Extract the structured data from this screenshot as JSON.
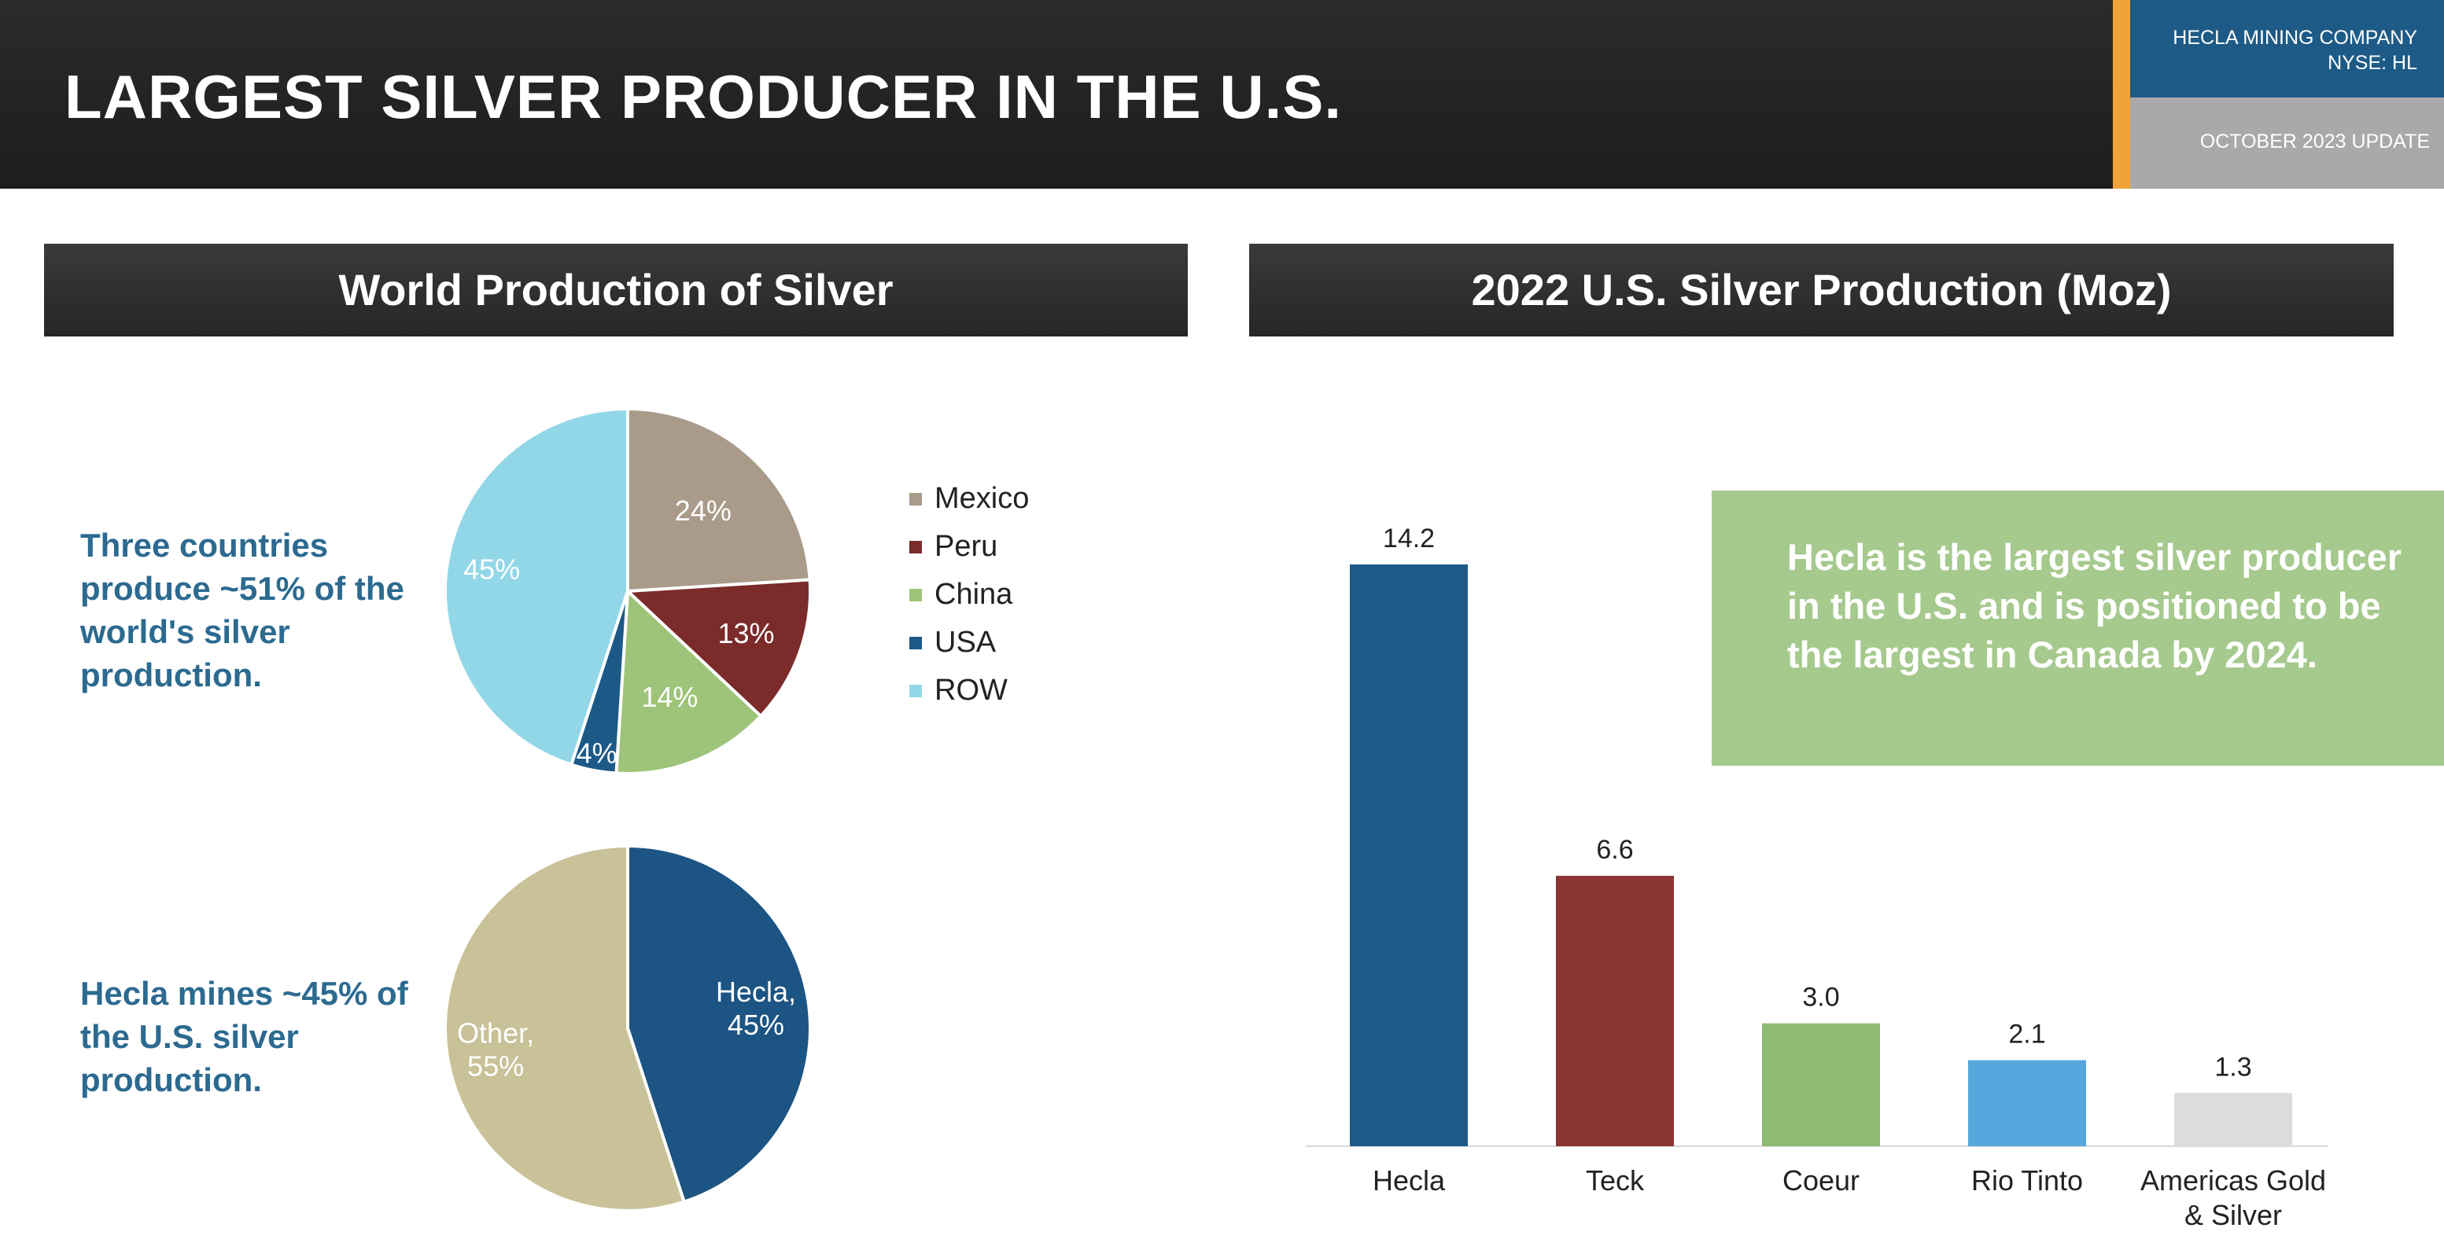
{
  "header": {
    "title": "LARGEST SILVER PRODUCER IN THE U.S.",
    "company_line1": "HECLA MINING COMPANY",
    "company_line2": "NYSE: HL",
    "update": "OCTOBER 2023 UPDATE"
  },
  "left": {
    "banner": "World Production of Silver",
    "caption_world": "Three countries produce ~51% of the world's silver production.",
    "caption_hecla": "Hecla mines ~45% of the U.S. silver production."
  },
  "right": {
    "banner": "2022 U.S. Silver Production (Moz)",
    "callout": "Hecla is the largest silver producer in the U.S. and is positioned to be the largest in Canada by 2024."
  },
  "chart_data": [
    {
      "type": "pie",
      "title": "",
      "labels": [
        "Mexico",
        "Peru",
        "China",
        "USA",
        "ROW"
      ],
      "values": [
        24,
        13,
        14,
        4,
        45
      ],
      "value_labels": [
        "24%",
        "13%",
        "14%",
        "4%",
        "45%"
      ],
      "colors": [
        "#a99a8a",
        "#7a2b2a",
        "#9ec47a",
        "#1c5987",
        "#92d7e8"
      ],
      "legend": "right"
    },
    {
      "type": "pie",
      "title": "",
      "labels": [
        "Hecla",
        "Other"
      ],
      "values": [
        45,
        55
      ],
      "value_labels": [
        "Hecla,\n45%",
        "Other,\n55%"
      ],
      "colors": [
        "#1c5483",
        "#c9c197"
      ],
      "legend": "none"
    },
    {
      "type": "bar",
      "title": "2022 U.S. Silver Production (Moz)",
      "categories": [
        "Hecla",
        "Teck",
        "Coeur",
        "Rio Tinto",
        "Americas Gold & Silver"
      ],
      "values": [
        14.2,
        6.6,
        3.0,
        2.1,
        1.3
      ],
      "value_labels": [
        "14.2",
        "6.6",
        "3.0",
        "2.1",
        "1.3"
      ],
      "colors": [
        "#1d5b88",
        "#8a3532",
        "#8fba72",
        "#55a7dd",
        "#dcdcdc"
      ],
      "xlabel": "",
      "ylabel": "",
      "ylim": [
        0,
        14.2
      ],
      "grid": false
    }
  ]
}
